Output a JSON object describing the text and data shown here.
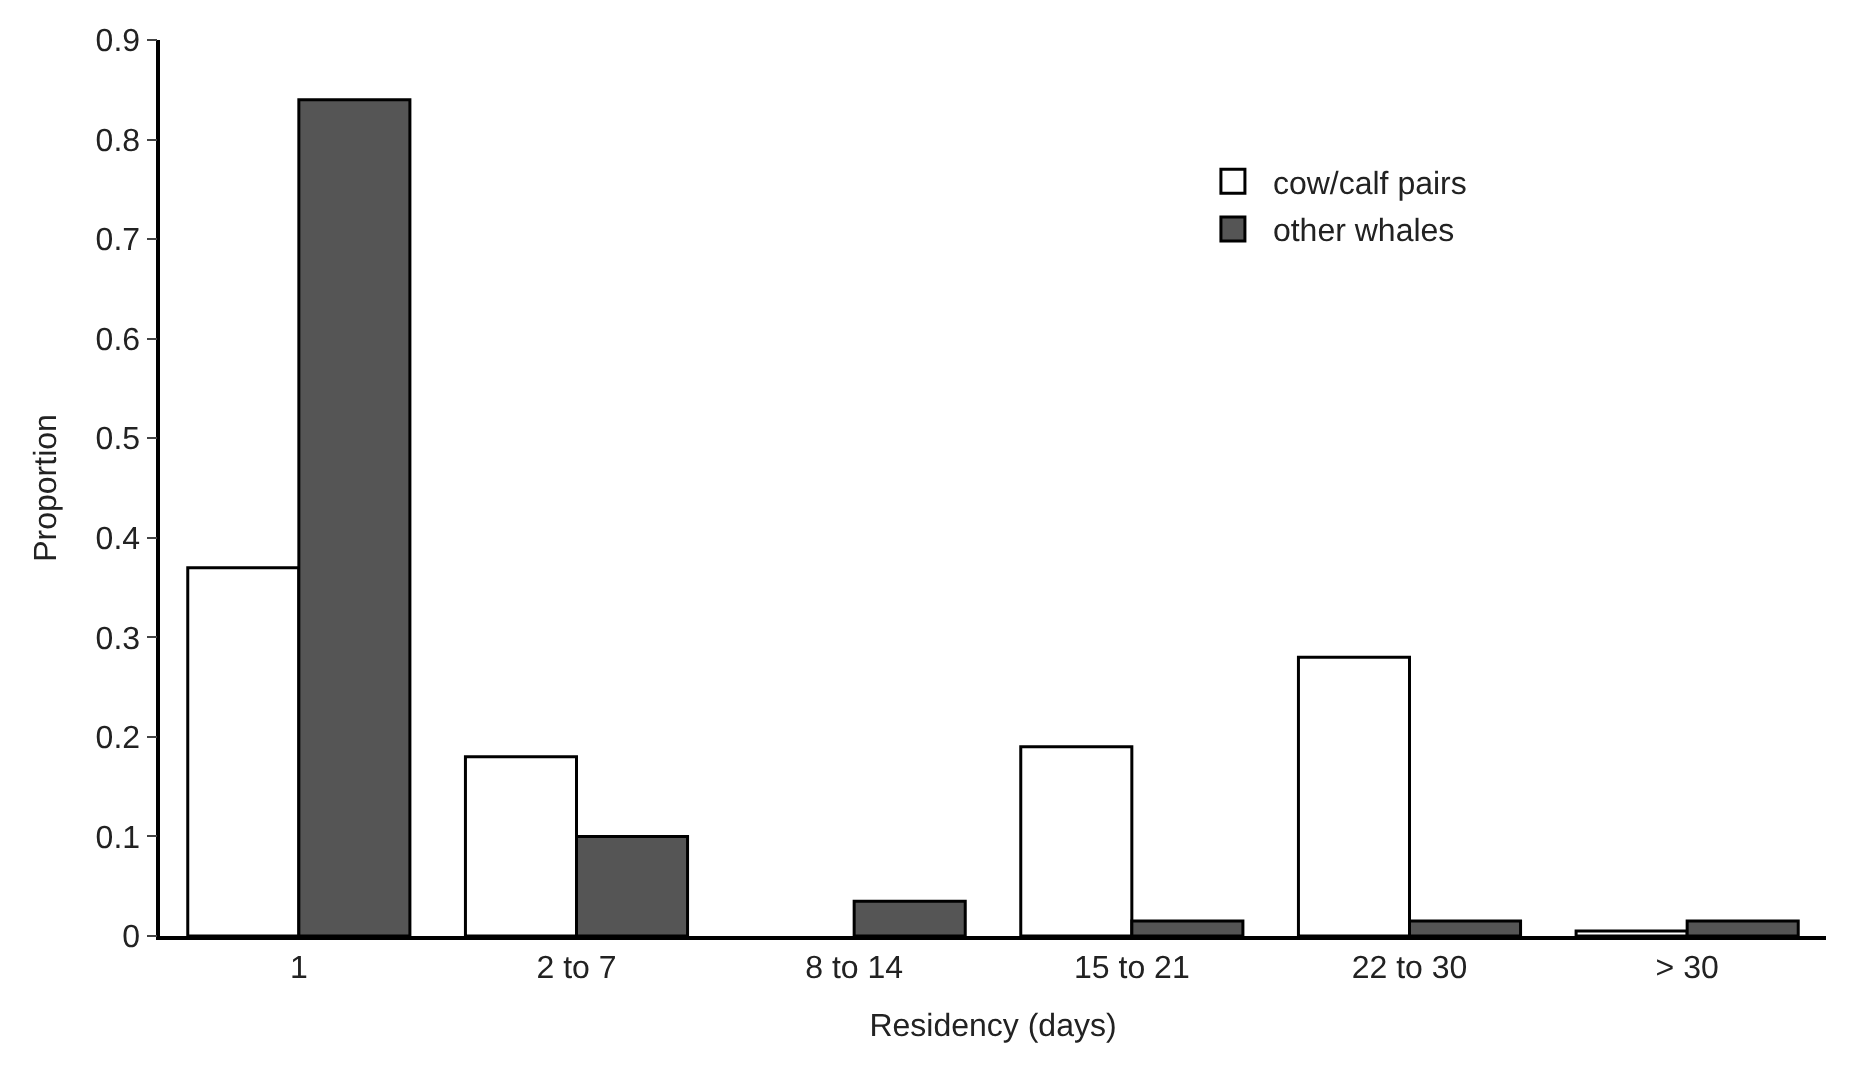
{
  "chart_data": {
    "type": "bar",
    "xlabel": "Residency (days)",
    "ylabel": "Proportion",
    "categories": [
      "1",
      "2 to 7",
      "8 to 14",
      "15 to 21",
      "22 to 30",
      "> 30"
    ],
    "series": [
      {
        "name": "cow/calf pairs",
        "color": "#ffffff",
        "values": [
          0.37,
          0.18,
          0,
          0.19,
          0.28,
          0.005
        ]
      },
      {
        "name": "other whales",
        "color": "#555555",
        "values": [
          0.84,
          0.1,
          0.035,
          0.015,
          0.015,
          0.015
        ]
      }
    ],
    "ylim": [
      0,
      0.9
    ],
    "yticks": [
      0,
      0.1,
      0.2,
      0.3,
      0.4,
      0.5,
      0.6,
      0.7,
      0.8,
      0.9
    ],
    "legend": "top right"
  }
}
